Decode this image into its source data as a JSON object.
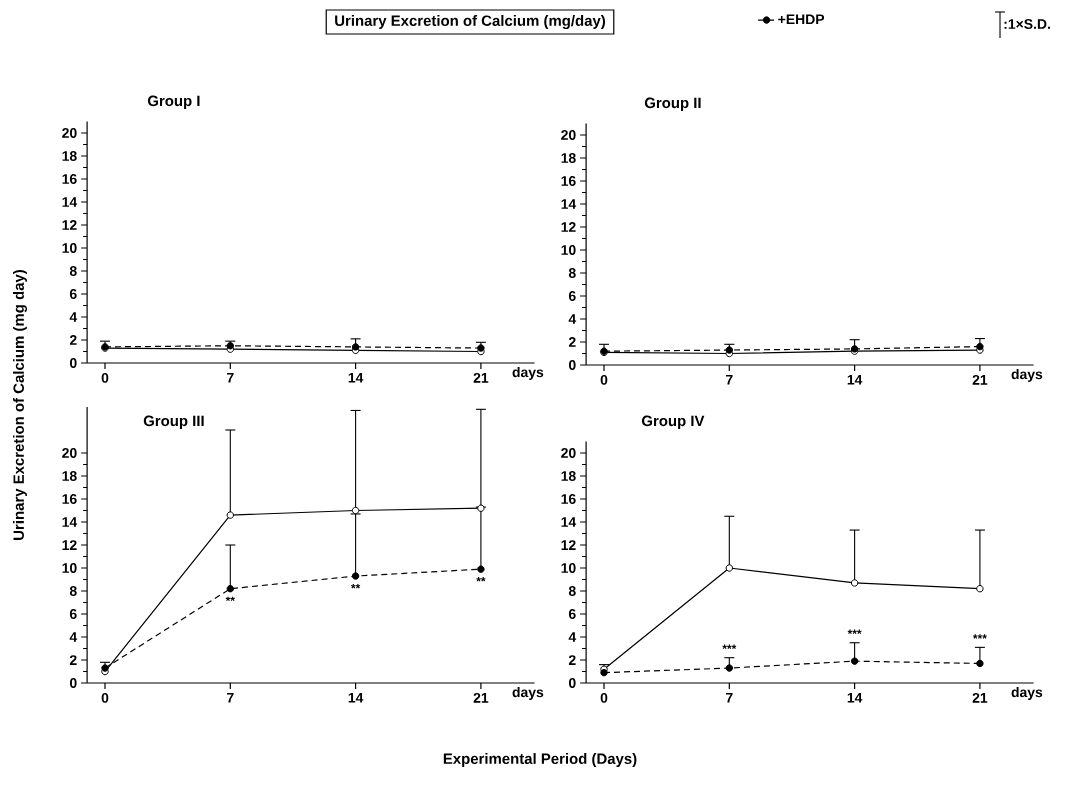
{
  "chart_data": [
    {
      "type": "line",
      "title": "Group I",
      "xlabel": "days",
      "legend": "top right",
      "marker": "circle",
      "annotations": [
        "Urinary Excretion of Calcium (mg/day)",
        ":1×S.D."
      ],
      "x": [
        0,
        7,
        14,
        21
      ],
      "xlim": [
        -1,
        24
      ],
      "xticks": [
        0,
        7,
        14,
        21
      ],
      "ylim": [
        0,
        21
      ],
      "yticks": [
        0,
        2,
        4,
        6,
        8,
        10,
        12,
        14,
        16,
        18,
        20
      ],
      "series": [
        {
          "color": "#000000",
          "line_style": "solid",
          "values": [
            1.3,
            1.2,
            1.1,
            1.0
          ]
        },
        {
          "name": "+EHDP",
          "color": "#000000",
          "line_style": "dashed",
          "values": [
            1.4,
            1.5,
            1.4,
            1.3
          ],
          "errors": [
            [
              1.4,
              1.9
            ],
            [
              1.5,
              1.9
            ],
            [
              1.4,
              2.1
            ],
            [
              1.3,
              1.8
            ]
          ]
        }
      ]
    },
    {
      "type": "line",
      "title": "Group II",
      "xlabel": "days",
      "marker": "circle",
      "x": [
        0,
        7,
        14,
        21
      ],
      "xlim": [
        -1,
        24
      ],
      "xticks": [
        0,
        7,
        14,
        21
      ],
      "ylim": [
        0,
        21
      ],
      "yticks": [
        0,
        2,
        4,
        6,
        8,
        10,
        12,
        14,
        16,
        18,
        20
      ],
      "series": [
        {
          "color": "#000000",
          "line_style": "solid",
          "values": [
            1.1,
            1.0,
            1.2,
            1.3
          ]
        },
        {
          "color": "#000000",
          "line_style": "dashed",
          "values": [
            1.2,
            1.3,
            1.4,
            1.6
          ],
          "errors": [
            [
              1.2,
              1.8
            ],
            [
              1.3,
              1.8
            ],
            [
              1.4,
              2.2
            ],
            [
              1.6,
              2.3
            ]
          ]
        }
      ]
    },
    {
      "type": "line",
      "title": "Group III",
      "xlabel": "days",
      "ylabel": "Urinary Excretion of Calcium (mg day)",
      "marker": "circle",
      "annotations": [
        "Experimental Period (Days)",
        {
          "text": "**",
          "x": 7,
          "y": 8.2
        },
        {
          "text": "**",
          "x": 14,
          "y": 9.3
        },
        {
          "text": "**",
          "x": 21,
          "y": 9.9
        }
      ],
      "x": [
        0,
        7,
        14,
        21
      ],
      "xlim": [
        -1,
        24
      ],
      "xticks": [
        0,
        7,
        14,
        21
      ],
      "ylim": [
        0,
        24
      ],
      "yticks": [
        0,
        2,
        4,
        6,
        8,
        10,
        12,
        14,
        16,
        18,
        20
      ],
      "series": [
        {
          "color": "#000000",
          "line_style": "solid",
          "values": [
            1.0,
            14.6,
            15.0,
            15.2
          ],
          "errors": [
            null,
            [
              14.6,
              22.0
            ],
            [
              15.0,
              23.7
            ],
            [
              15.2,
              23.8
            ]
          ]
        },
        {
          "color": "#000000",
          "line_style": "dashed",
          "values": [
            1.3,
            8.2,
            9.3,
            9.9
          ],
          "errors": [
            [
              1.3,
              1.8
            ],
            [
              8.2,
              12.0
            ],
            [
              9.3,
              14.7
            ],
            [
              9.9,
              15.3
            ]
          ]
        }
      ]
    },
    {
      "type": "line",
      "title": "Group IV",
      "xlabel": "days",
      "marker": "circle",
      "annotations": [
        {
          "text": "***",
          "x": 7,
          "y": 2.2
        },
        {
          "text": "***",
          "x": 14,
          "y": 3.5
        },
        {
          "text": "***",
          "x": 21,
          "y": 3.1
        }
      ],
      "x": [
        0,
        7,
        14,
        21
      ],
      "xlim": [
        -1,
        24
      ],
      "xticks": [
        0,
        7,
        14,
        21
      ],
      "ylim": [
        0,
        21
      ],
      "yticks": [
        0,
        2,
        4,
        6,
        8,
        10,
        12,
        14,
        16,
        18,
        20
      ],
      "series": [
        {
          "color": "#000000",
          "line_style": "solid",
          "values": [
            1.2,
            10.0,
            8.7,
            8.2
          ],
          "errors": [
            [
              1.2,
              1.6
            ],
            [
              10.0,
              14.5
            ],
            [
              8.7,
              13.3
            ],
            [
              8.2,
              13.3
            ]
          ]
        },
        {
          "color": "#000000",
          "line_style": "dashed",
          "values": [
            0.9,
            1.3,
            1.9,
            1.7
          ],
          "errors": [
            null,
            [
              1.3,
              2.2
            ],
            [
              1.9,
              3.5
            ],
            [
              1.7,
              3.1
            ]
          ]
        }
      ]
    }
  ]
}
